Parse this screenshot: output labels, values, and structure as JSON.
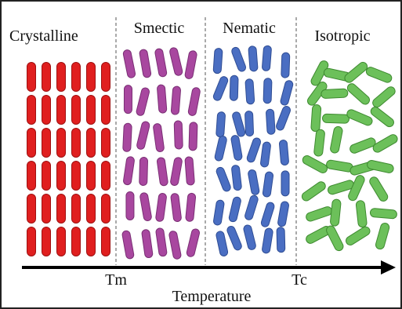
{
  "phases": [
    {
      "label": "Crystalline"
    },
    {
      "label": "Smectic"
    },
    {
      "label": "Nematic"
    },
    {
      "label": "Isotropic"
    }
  ],
  "transitions": [
    "Tm",
    "Tc"
  ],
  "axis_label": "Temperature"
}
